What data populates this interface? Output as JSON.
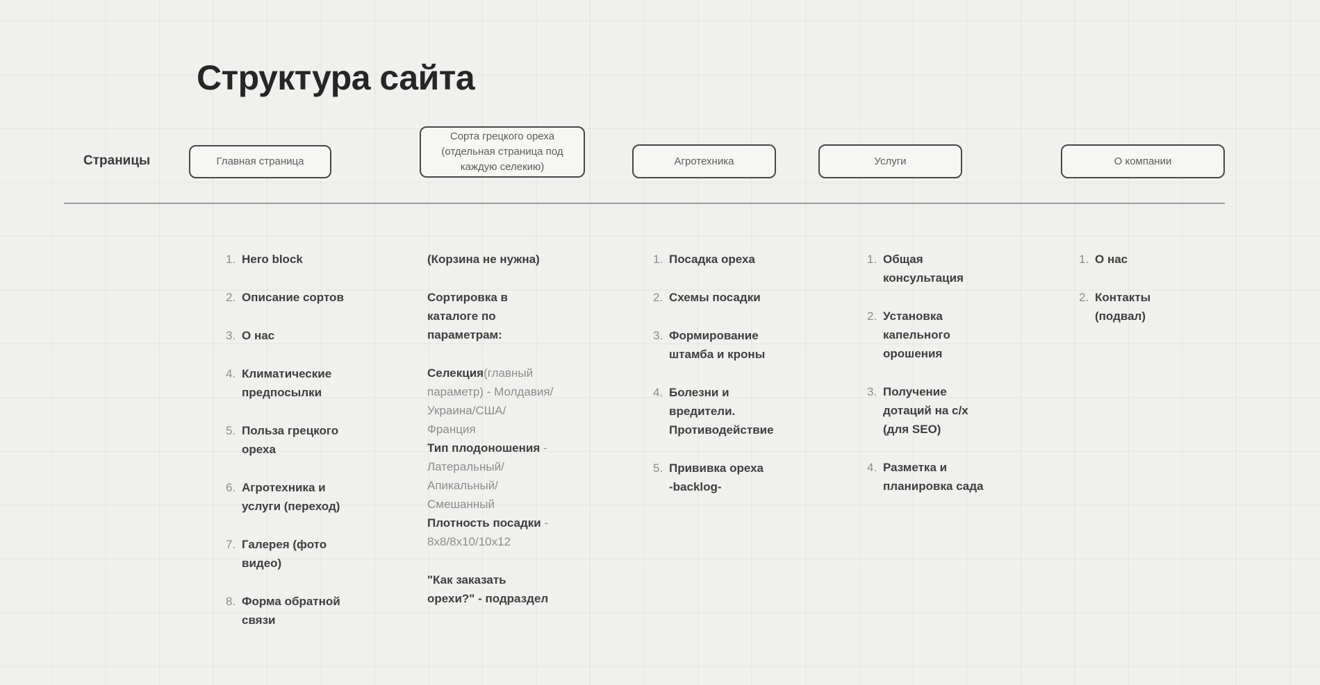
{
  "canvas": {
    "title": "Структура сайта",
    "pages_label": "Страницы"
  },
  "colors": {
    "background": "#f0f0ee",
    "box_border": "#474747",
    "box_fill": "#f6f6f4",
    "divider": "#9c9c9c",
    "bold_text": "#3e3e3e",
    "muted_text": "#8c8c8c"
  },
  "page_boxes": [
    {
      "id": "home",
      "label": "Главная страница"
    },
    {
      "id": "sorta",
      "label": "Сорта грецкого ореха\n(отдельная страница под\nкаждую селекию)"
    },
    {
      "id": "agro",
      "label": "Агротехника"
    },
    {
      "id": "services",
      "label": "Услуги"
    },
    {
      "id": "about",
      "label": "О компании"
    }
  ],
  "columns": {
    "home": {
      "items": [
        {
          "num": "1.",
          "text": "Hero block"
        },
        {
          "num": "2.",
          "text": "Описание сортов"
        },
        {
          "num": "3.",
          "text": "О нас"
        },
        {
          "num": "4.",
          "text": "Климатические\nпредпосылки"
        },
        {
          "num": "5.",
          "text": "Польза грецкого\nореха"
        },
        {
          "num": "6.",
          "text": "Агротехника и\nуслуги (переход)"
        },
        {
          "num": "7.",
          "text": "Галерея (фото\nвидео)"
        },
        {
          "num": "8.",
          "text": "Форма обратной\nсвязи"
        }
      ]
    },
    "sorta": {
      "p1": "(Корзина не нужна)",
      "p2": "Сортировка в\nкаталоге по\nпараметрам:",
      "p3": {
        "s1": "Селекция",
        "s2": "(главный\nпараметр) - Молдавия/\nУкраина/США/\nФранция\n",
        "s3": "Тип плодоношения",
        "s4": " -\nЛатеральный/\nАпикальный/\nСмешанный\n",
        "s5": "Плотность посадки",
        "s6": " -\n8x8/8x10/10x12"
      },
      "p4": "\"Как заказать\nорехи?\" - подраздел"
    },
    "agro": {
      "items": [
        {
          "num": "1.",
          "text": "Посадка ореха"
        },
        {
          "num": "2.",
          "text": "Схемы посадки"
        },
        {
          "num": "3.",
          "text": "Формирование\nштамба и кроны"
        },
        {
          "num": "4.",
          "text": "Болезни и\nвредители.\nПротиводействие"
        },
        {
          "num": "5.",
          "text": "Прививка ореха\n-backlog-"
        }
      ]
    },
    "services": {
      "items": [
        {
          "num": "1.",
          "text": "Общая\nконсультация"
        },
        {
          "num": "2.",
          "text": "Установка\nкапельного\nорошения"
        },
        {
          "num": "3.",
          "text": "Получение\nдотаций на с/х\n(для SEO)"
        },
        {
          "num": "4.",
          "text": "Разметка и\nпланировка сада"
        }
      ]
    },
    "about": {
      "items": [
        {
          "num": "1.",
          "text": "О нас"
        },
        {
          "num": "2.",
          "text": "Контакты\n(подвал)"
        }
      ]
    }
  }
}
